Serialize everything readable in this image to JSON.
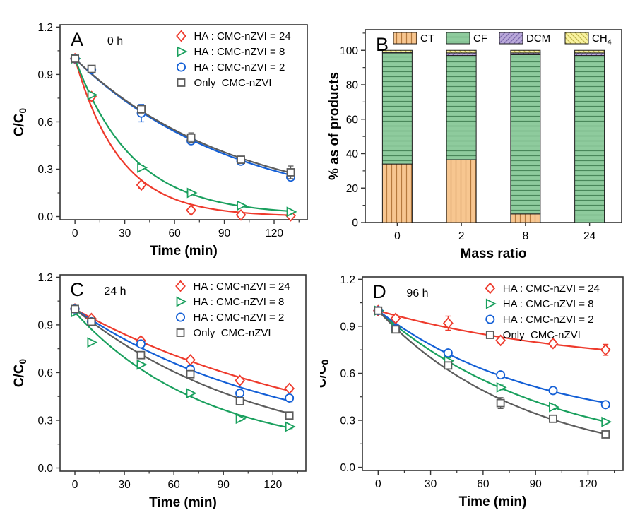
{
  "chart_data": [
    {
      "id": "A",
      "type": "scatter",
      "panel_label": "A",
      "annotation": "0 h",
      "xlabel": "Time (min)",
      "ylabel": {
        "base": "C/C",
        "sub": "0"
      },
      "xticks": [
        0,
        30,
        60,
        90,
        120
      ],
      "yticks": [
        0.0,
        0.3,
        0.6,
        0.9,
        1.2
      ],
      "ytick_labels": [
        "0.0",
        "0.3",
        "0.6",
        "0.9",
        "1.2"
      ],
      "xlim": [
        -9,
        140
      ],
      "ylim": [
        -0.02,
        1.215
      ],
      "x_minor_step": 15,
      "y_minor_step": 0.15,
      "grid": false,
      "legend_position": "top-right-inside",
      "x": [
        0,
        10,
        40,
        70,
        100,
        130
      ],
      "series": [
        {
          "name": "HA : CMC-nZVI = 24",
          "marker": "diamond",
          "color": "#ee3a2c",
          "values": [
            1.0,
            0.76,
            0.2,
            0.04,
            0.01,
            0.005
          ],
          "err": [
            0.012,
            0.012,
            0.02,
            0.015,
            0.008,
            0.006
          ]
        },
        {
          "name": "HA : CMC-nZVI = 8",
          "marker": "triangle-right",
          "color": "#1aa05e",
          "values": [
            1.0,
            0.77,
            0.31,
            0.15,
            0.07,
            0.03
          ],
          "err": [
            0.01,
            0.01,
            0.012,
            0.01,
            0.008,
            0.008
          ]
        },
        {
          "name": "HA : CMC-nZVI = 2",
          "marker": "circle",
          "color": "#135fd6",
          "values": [
            1.0,
            0.93,
            0.655,
            0.48,
            0.35,
            0.25
          ],
          "err": [
            0.01,
            0.012,
            0.055,
            0.02,
            0.012,
            0.02
          ]
        },
        {
          "name": "Only  CMC-nZVI",
          "marker": "square",
          "color": "#5b5b5b",
          "values": [
            1.0,
            0.935,
            0.68,
            0.5,
            0.36,
            0.28
          ],
          "err": [
            0.01,
            0.012,
            0.025,
            0.03,
            0.012,
            0.04
          ]
        }
      ]
    },
    {
      "id": "B",
      "type": "bar",
      "stacked": true,
      "panel_label": "B",
      "xlabel": "Mass ratio",
      "ylabel": {
        "base": "% as of products"
      },
      "categories": [
        "0",
        "2",
        "8",
        "24"
      ],
      "yticks": [
        0,
        20,
        40,
        60,
        80,
        100
      ],
      "ytick_labels": [
        "0",
        "20",
        "40",
        "60",
        "80",
        "100"
      ],
      "ylim": [
        0,
        112
      ],
      "y_minor_step": 10,
      "grid": false,
      "legend_position": "top-inside-row",
      "series": [
        {
          "name": {
            "base": "CT"
          },
          "color": "#f7c690",
          "hatch": "vertical",
          "hatch_color": "#b5793c",
          "values": [
            34,
            36.5,
            5,
            0
          ]
        },
        {
          "name": {
            "base": "CF"
          },
          "color": "#8ecb9d",
          "hatch": "horizontal",
          "hatch_color": "#49875a",
          "values": [
            64.5,
            60.5,
            92.5,
            97
          ]
        },
        {
          "name": {
            "base": "DCM"
          },
          "color": "#b9a8d9",
          "hatch": "diag-up",
          "hatch_color": "#7b68ad",
          "values": [
            0.5,
            1.5,
            1.0,
            1.5
          ]
        },
        {
          "name": {
            "base": "CH",
            "sub": "4"
          },
          "color": "#f8f2a0",
          "hatch": "diag-down",
          "hatch_color": "#c0b44a",
          "values": [
            1.0,
            1.5,
            1.5,
            1.5
          ]
        }
      ]
    },
    {
      "id": "C",
      "type": "scatter",
      "panel_label": "C",
      "annotation": "24 h",
      "xlabel": "Time (min)",
      "ylabel": {
        "base": "C/C",
        "sub": "0"
      },
      "xticks": [
        0,
        30,
        60,
        90,
        120
      ],
      "yticks": [
        0.0,
        0.3,
        0.6,
        0.9,
        1.2
      ],
      "ytick_labels": [
        "0.0",
        "0.3",
        "0.6",
        "0.9",
        "1.2"
      ],
      "xlim": [
        -9,
        140
      ],
      "ylim": [
        -0.02,
        1.215
      ],
      "x_minor_step": 15,
      "y_minor_step": 0.15,
      "grid": false,
      "legend_position": "top-right-inside",
      "x": [
        0,
        10,
        40,
        70,
        100,
        130
      ],
      "series": [
        {
          "name": "HA : CMC-nZVI = 24",
          "marker": "diamond",
          "color": "#ee3a2c",
          "values": [
            1.0,
            0.94,
            0.8,
            0.68,
            0.55,
            0.5
          ],
          "err": [
            0.012,
            0.015,
            0.02,
            0.015,
            0.02,
            0.015
          ]
        },
        {
          "name": "HA : CMC-nZVI = 8",
          "marker": "triangle-right",
          "color": "#1aa05e",
          "values": [
            0.98,
            0.79,
            0.65,
            0.47,
            0.31,
            0.26
          ],
          "err": [
            0.01,
            0.01,
            0.012,
            0.01,
            0.012,
            0.01
          ]
        },
        {
          "name": "HA : CMC-nZVI = 2",
          "marker": "circle",
          "color": "#135fd6",
          "values": [
            1.0,
            0.92,
            0.78,
            0.62,
            0.47,
            0.44
          ],
          "err": [
            0.01,
            0.012,
            0.015,
            0.025,
            0.02,
            0.015
          ]
        },
        {
          "name": "Only  CMC-nZVI",
          "marker": "square",
          "color": "#5b5b5b",
          "values": [
            1.0,
            0.92,
            0.71,
            0.59,
            0.42,
            0.33
          ],
          "err": [
            0.01,
            0.015,
            0.02,
            0.02,
            0.015,
            0.015
          ]
        }
      ]
    },
    {
      "id": "D",
      "type": "scatter",
      "panel_label": "D",
      "annotation": "96 h",
      "xlabel": "Time (min)",
      "ylabel": {
        "base": "C/C",
        "sub": "0"
      },
      "xticks": [
        0,
        30,
        60,
        90,
        120
      ],
      "yticks": [
        0.0,
        0.3,
        0.6,
        0.9,
        1.2
      ],
      "ytick_labels": [
        "0.0",
        "0.3",
        "0.6",
        "0.9",
        "1.2"
      ],
      "xlim": [
        -9,
        140
      ],
      "ylim": [
        -0.02,
        1.215
      ],
      "x_minor_step": 15,
      "y_minor_step": 0.15,
      "grid": false,
      "legend_position": "top-right-inside",
      "x": [
        0,
        10,
        40,
        70,
        100,
        130
      ],
      "series": [
        {
          "name": "HA : CMC-nZVI = 24",
          "marker": "diamond",
          "color": "#ee3a2c",
          "values": [
            1.0,
            0.95,
            0.92,
            0.81,
            0.79,
            0.75
          ],
          "err": [
            0.012,
            0.02,
            0.045,
            0.02,
            0.02,
            0.035
          ]
        },
        {
          "name": "HA : CMC-nZVI = 8",
          "marker": "triangle-right",
          "color": "#1aa05e",
          "values": [
            1.0,
            0.89,
            0.68,
            0.51,
            0.385,
            0.29
          ],
          "err": [
            0.015,
            0.015,
            0.02,
            0.015,
            0.015,
            0.012
          ]
        },
        {
          "name": "HA : CMC-nZVI = 2",
          "marker": "circle",
          "color": "#135fd6",
          "values": [
            1.0,
            0.885,
            0.73,
            0.59,
            0.49,
            0.4
          ],
          "err": [
            0.01,
            0.015,
            0.015,
            0.015,
            0.015,
            0.015
          ]
        },
        {
          "name": "Only  CMC-nZVI",
          "marker": "square",
          "color": "#5b5b5b",
          "values": [
            1.0,
            0.88,
            0.65,
            0.41,
            0.31,
            0.21
          ],
          "err": [
            0.012,
            0.02,
            0.02,
            0.035,
            0.015,
            0.015
          ]
        }
      ]
    }
  ]
}
